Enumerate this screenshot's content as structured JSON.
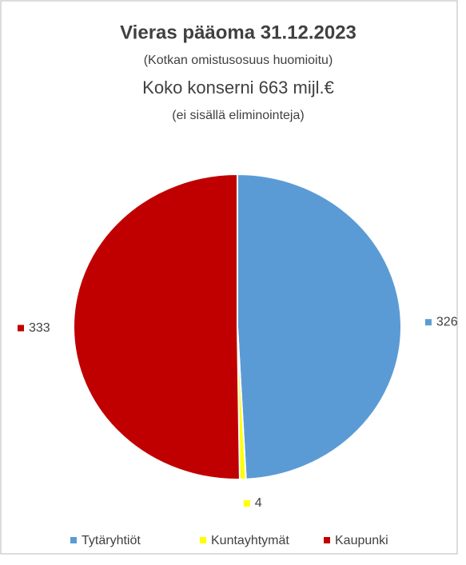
{
  "chart_data": {
    "type": "pie",
    "title": "Vieras pääoma 31.12.2023",
    "subtitles": [
      "(Kotkan omistusosuus huomioitu)",
      "Koko konserni 663 mijl.€",
      "(ei sisällä eliminointeja)"
    ],
    "categories": [
      "Tytäryhtiöt",
      "Kuntayhtymät",
      "Kaupunki"
    ],
    "values": [
      326,
      4,
      333
    ],
    "colors": [
      "#5b9bd5",
      "#ffff00",
      "#c00000"
    ],
    "legend": "bottom"
  }
}
